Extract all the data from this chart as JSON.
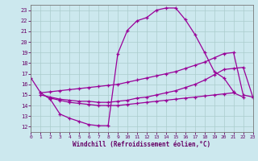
{
  "xlabel": "Windchill (Refroidissement éolien,°C)",
  "xlim": [
    0,
    23
  ],
  "ylim": [
    11.5,
    23.5
  ],
  "xticks": [
    0,
    1,
    2,
    3,
    4,
    5,
    6,
    7,
    8,
    9,
    10,
    11,
    12,
    13,
    14,
    15,
    16,
    17,
    18,
    19,
    20,
    21,
    22,
    23
  ],
  "yticks": [
    12,
    13,
    14,
    15,
    16,
    17,
    18,
    19,
    20,
    21,
    22,
    23
  ],
  "bg_color": "#cce8ee",
  "line_color": "#990099",
  "grid_color": "#aacccc",
  "line1_x": [
    0,
    1,
    2,
    3,
    4,
    5,
    6,
    7,
    8,
    9,
    10,
    11,
    12,
    13,
    14,
    15,
    16,
    17,
    18,
    19,
    20,
    21
  ],
  "line1_y": [
    16.6,
    15.2,
    14.6,
    13.2,
    12.8,
    12.5,
    12.2,
    12.1,
    12.1,
    18.9,
    21.1,
    22.0,
    22.3,
    23.0,
    23.2,
    23.2,
    22.1,
    20.7,
    19.0,
    17.2,
    16.6,
    15.3
  ],
  "line2_x": [
    1,
    2,
    3,
    4,
    5,
    6,
    7,
    8,
    9,
    10,
    11,
    12,
    13,
    14,
    15,
    16,
    17,
    18,
    19,
    20,
    21,
    22,
    23
  ],
  "line2_y": [
    15.2,
    15.3,
    15.4,
    15.5,
    15.6,
    15.7,
    15.8,
    15.9,
    16.0,
    16.2,
    16.4,
    16.6,
    16.8,
    17.0,
    17.2,
    17.5,
    17.8,
    18.1,
    18.5,
    18.9,
    19.0,
    15.0,
    14.8
  ],
  "line3_x": [
    1,
    2,
    3,
    4,
    5,
    6,
    7,
    8,
    9,
    10,
    11,
    12,
    13,
    14,
    15,
    16,
    17,
    18,
    19,
    20,
    21,
    22,
    23
  ],
  "line3_y": [
    15.0,
    14.8,
    14.6,
    14.5,
    14.4,
    14.4,
    14.3,
    14.3,
    14.4,
    14.5,
    14.7,
    14.8,
    15.0,
    15.2,
    15.4,
    15.7,
    16.0,
    16.4,
    16.9,
    17.4,
    17.5,
    17.6,
    14.8
  ],
  "line4_x": [
    2,
    3,
    4,
    5,
    6,
    7,
    8,
    9,
    10,
    11,
    12,
    13,
    14,
    15,
    16,
    17,
    18,
    19,
    20,
    21,
    22
  ],
  "line4_y": [
    14.7,
    14.5,
    14.3,
    14.2,
    14.1,
    14.0,
    14.0,
    14.0,
    14.1,
    14.2,
    14.3,
    14.4,
    14.5,
    14.6,
    14.7,
    14.8,
    14.9,
    15.0,
    15.1,
    15.2,
    14.8
  ]
}
